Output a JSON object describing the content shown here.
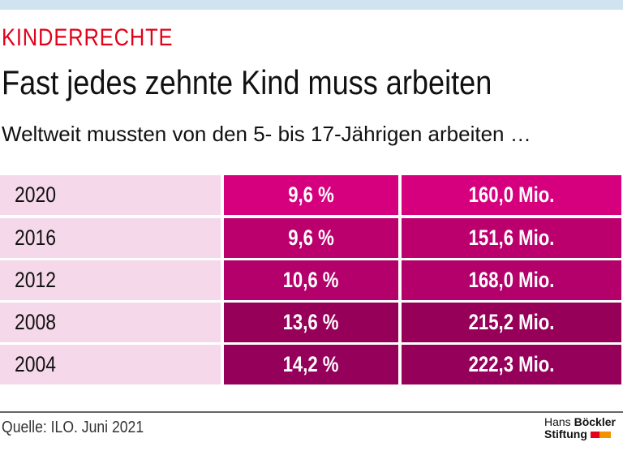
{
  "kicker": "KINDERRECHTE",
  "title": "Fast jedes zehnte Kind muss arbeiten",
  "subtitle": "Weltweit mussten von den 5- bis 17-Jährigen arbeiten …",
  "source": "Quelle: ILO. Juni 2021",
  "logo": {
    "line1a": "Hans",
    "line1b": "Böckler",
    "line2": "Stiftung",
    "colors": [
      "#e2001a",
      "#f39200"
    ]
  },
  "colors": {
    "title": "#e2001a",
    "year_bg": "#f5d9ea",
    "row_colors": [
      "#d6007f",
      "#bb006e",
      "#b3006a",
      "#970059",
      "#94005a"
    ]
  },
  "chart_data": {
    "type": "table",
    "rows": [
      {
        "year": "2020",
        "percent": "9,6 %",
        "count": "160,0 Mio."
      },
      {
        "year": "2016",
        "percent": "9,6 %",
        "count": "151,6 Mio."
      },
      {
        "year": "2012",
        "percent": "10,6 %",
        "count": "168,0 Mio."
      },
      {
        "year": "2008",
        "percent": "13,6 %",
        "count": "215,2 Mio."
      },
      {
        "year": "2004",
        "percent": "14,2 %",
        "count": "222,3 Mio."
      }
    ]
  }
}
